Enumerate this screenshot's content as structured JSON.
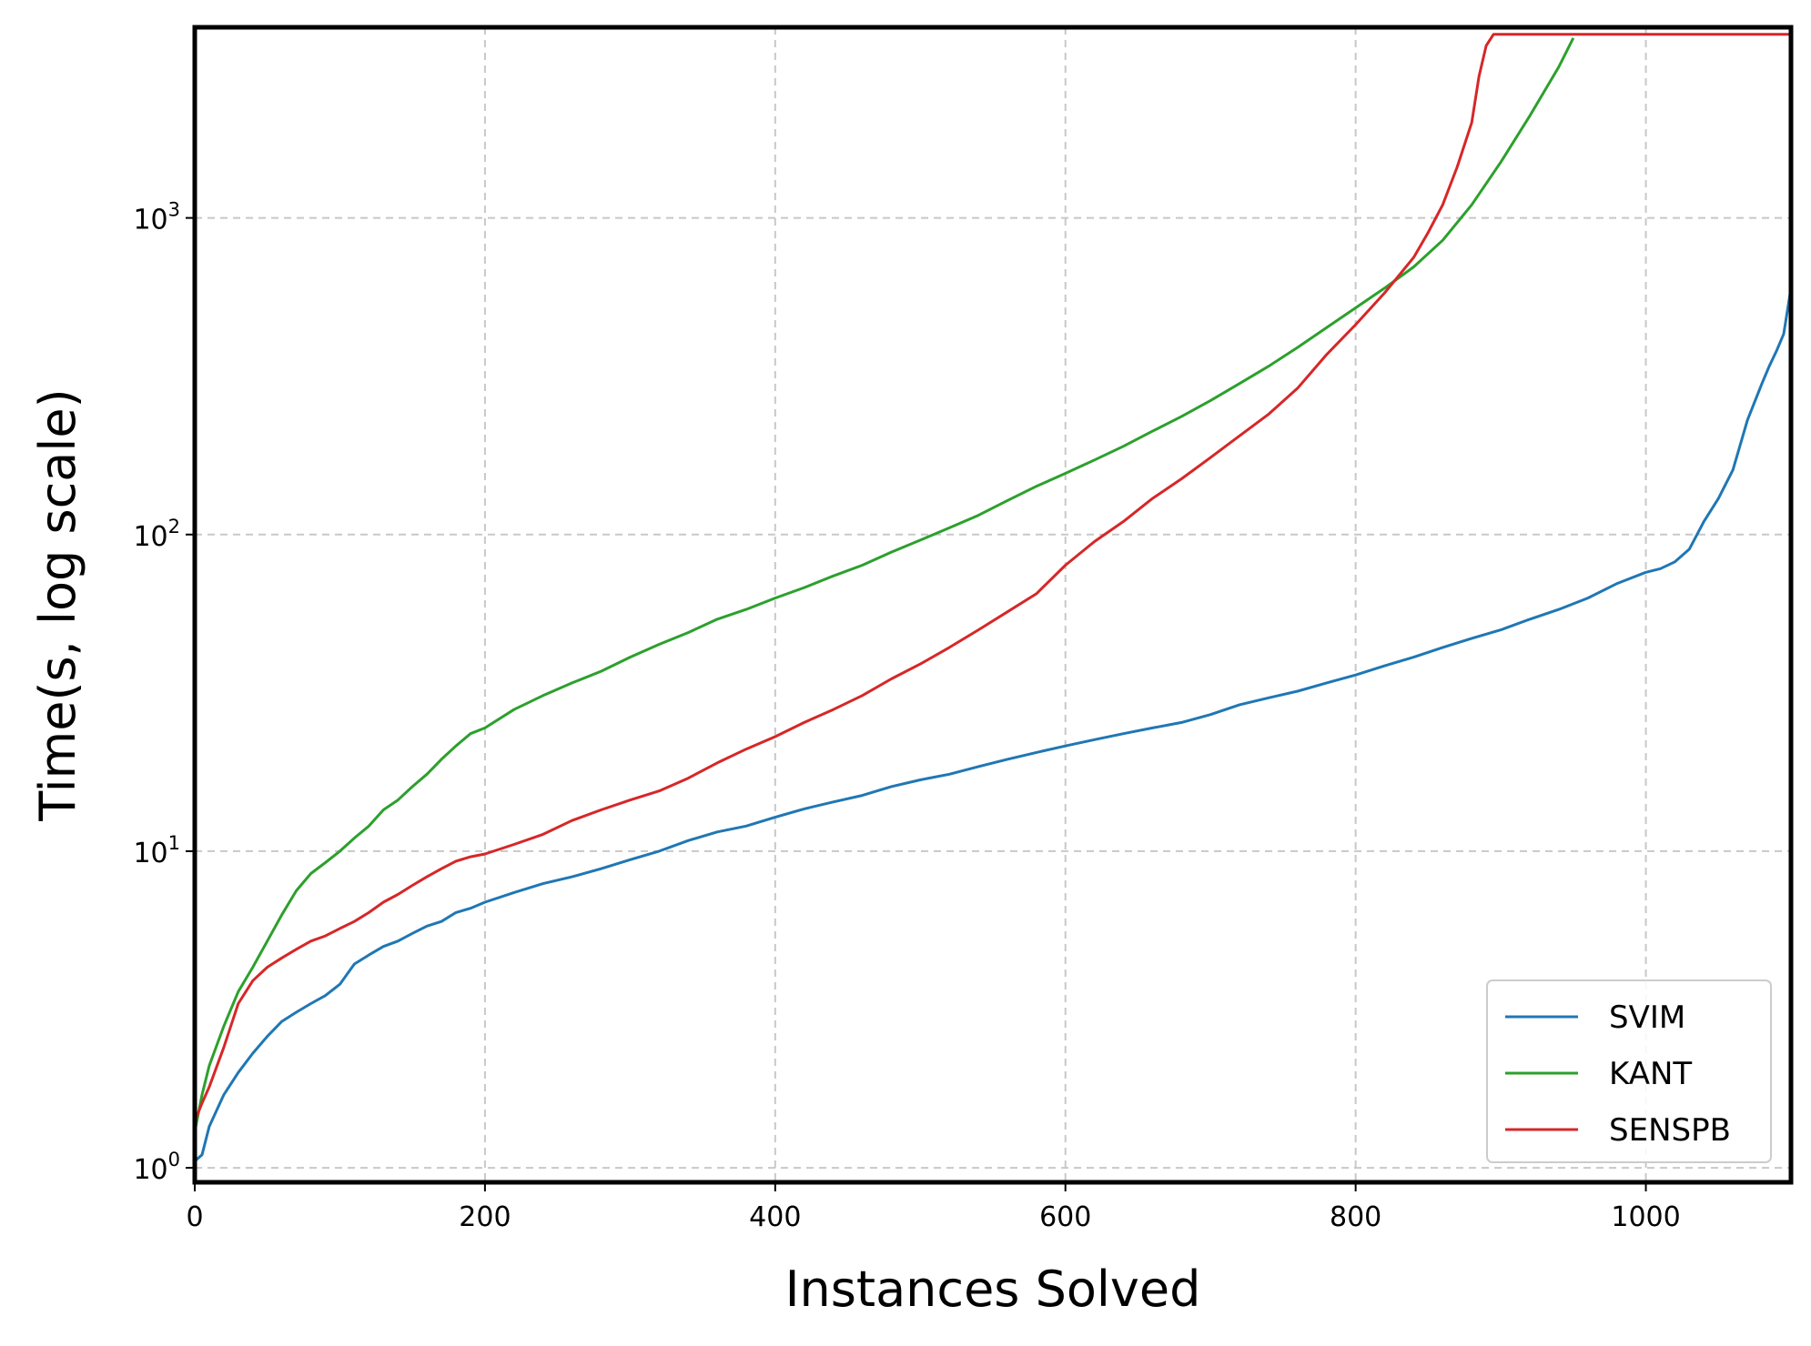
{
  "chart_data": {
    "type": "line",
    "title": "",
    "xlabel": "Instances Solved",
    "ylabel": "Time(s, log scale)",
    "xlim": [
      0,
      1100
    ],
    "ylim": [
      0.9,
      4000
    ],
    "yscale": "log",
    "grid": true,
    "legend_position": "bottom-right",
    "xticks": [
      {
        "value": 0,
        "label": "0"
      },
      {
        "value": 200,
        "label": "200"
      },
      {
        "value": 400,
        "label": "400"
      },
      {
        "value": 600,
        "label": "600"
      },
      {
        "value": 800,
        "label": "800"
      },
      {
        "value": 1000,
        "label": "1000"
      }
    ],
    "yticks": [
      {
        "value": 1,
        "base": "10",
        "exp": "0"
      },
      {
        "value": 10,
        "base": "10",
        "exp": "1"
      },
      {
        "value": 100,
        "base": "10",
        "exp": "2"
      },
      {
        "value": 1000,
        "base": "10",
        "exp": "3"
      }
    ],
    "series": [
      {
        "name": "SVIM",
        "color": "#1f77b4",
        "x": [
          0,
          5,
          10,
          20,
          30,
          40,
          50,
          60,
          70,
          80,
          90,
          100,
          110,
          120,
          130,
          140,
          150,
          160,
          170,
          180,
          190,
          200,
          220,
          240,
          260,
          280,
          300,
          320,
          340,
          360,
          380,
          400,
          420,
          440,
          460,
          480,
          500,
          520,
          540,
          560,
          580,
          600,
          620,
          640,
          660,
          680,
          700,
          720,
          740,
          760,
          780,
          800,
          820,
          840,
          860,
          880,
          900,
          920,
          940,
          960,
          980,
          1000,
          1010,
          1020,
          1030,
          1040,
          1050,
          1060,
          1070,
          1080,
          1085,
          1090,
          1095,
          1100
        ],
        "y": [
          1.05,
          1.1,
          1.35,
          1.7,
          2.0,
          2.3,
          2.6,
          2.9,
          3.1,
          3.3,
          3.5,
          3.8,
          4.4,
          4.7,
          5.0,
          5.2,
          5.5,
          5.8,
          6.0,
          6.4,
          6.6,
          6.9,
          7.4,
          7.9,
          8.3,
          8.8,
          9.4,
          10.0,
          10.8,
          11.5,
          12.0,
          12.8,
          13.6,
          14.3,
          15.0,
          16.0,
          16.8,
          17.5,
          18.5,
          19.5,
          20.5,
          21.5,
          22.5,
          23.5,
          24.5,
          25.5,
          27.0,
          29.0,
          30.5,
          32.0,
          34.0,
          36.0,
          38.5,
          41.0,
          44.0,
          47.0,
          50.0,
          54.0,
          58.0,
          63.0,
          70.0,
          76.0,
          78.0,
          82.0,
          90.0,
          110.0,
          130.0,
          160.0,
          230.0,
          300.0,
          340.0,
          380.0,
          430.0,
          600.0
        ]
      },
      {
        "name": "KANT",
        "color": "#2ca02c",
        "x": [
          0,
          5,
          10,
          20,
          30,
          40,
          50,
          60,
          70,
          80,
          90,
          100,
          110,
          120,
          130,
          140,
          150,
          160,
          170,
          180,
          190,
          200,
          220,
          240,
          260,
          280,
          300,
          320,
          340,
          360,
          380,
          400,
          420,
          440,
          460,
          480,
          500,
          520,
          540,
          560,
          580,
          600,
          620,
          640,
          660,
          680,
          700,
          720,
          740,
          760,
          780,
          800,
          820,
          840,
          860,
          880,
          900,
          920,
          940,
          950
        ],
        "y": [
          1.3,
          1.7,
          2.1,
          2.8,
          3.6,
          4.3,
          5.2,
          6.3,
          7.5,
          8.5,
          9.2,
          10.0,
          11.0,
          12.0,
          13.5,
          14.5,
          16.0,
          17.5,
          19.5,
          21.5,
          23.5,
          24.5,
          28.0,
          31.0,
          34.0,
          37.0,
          41.0,
          45.0,
          49.0,
          54.0,
          58.0,
          63.0,
          68.0,
          74.0,
          80.0,
          88.0,
          96.0,
          105.0,
          115.0,
          128.0,
          142.0,
          156.0,
          172.0,
          190.0,
          212.0,
          236.0,
          265.0,
          300.0,
          340.0,
          390.0,
          450.0,
          520.0,
          600.0,
          700.0,
          850.0,
          1100.0,
          1500.0,
          2100.0,
          3000.0,
          3700.0
        ]
      },
      {
        "name": "SENSPB",
        "color": "#d62728",
        "x": [
          0,
          5,
          10,
          20,
          30,
          40,
          50,
          60,
          70,
          80,
          90,
          100,
          110,
          120,
          130,
          140,
          150,
          160,
          170,
          180,
          190,
          200,
          220,
          240,
          260,
          280,
          300,
          320,
          340,
          360,
          380,
          400,
          420,
          440,
          460,
          480,
          500,
          520,
          540,
          560,
          580,
          600,
          620,
          640,
          660,
          680,
          700,
          720,
          740,
          760,
          780,
          800,
          820,
          840,
          850,
          860,
          870,
          880,
          885,
          890,
          895,
          900,
          1000,
          1100
        ],
        "y": [
          1.4,
          1.6,
          1.8,
          2.4,
          3.3,
          3.9,
          4.3,
          4.6,
          4.9,
          5.2,
          5.4,
          5.7,
          6.0,
          6.4,
          6.9,
          7.3,
          7.8,
          8.3,
          8.8,
          9.3,
          9.6,
          9.8,
          10.5,
          11.3,
          12.5,
          13.5,
          14.5,
          15.5,
          17.0,
          19.0,
          21.0,
          23.0,
          25.5,
          28.0,
          31.0,
          35.0,
          39.0,
          44.0,
          50.0,
          57.0,
          65.0,
          80.0,
          95.0,
          110.0,
          130.0,
          150.0,
          175.0,
          205.0,
          240.0,
          290.0,
          370.0,
          460.0,
          580.0,
          750.0,
          900.0,
          1100.0,
          1450.0,
          2000.0,
          2800.0,
          3500.0,
          3800.0,
          3800.0,
          3800.0,
          3800.0
        ]
      }
    ]
  }
}
